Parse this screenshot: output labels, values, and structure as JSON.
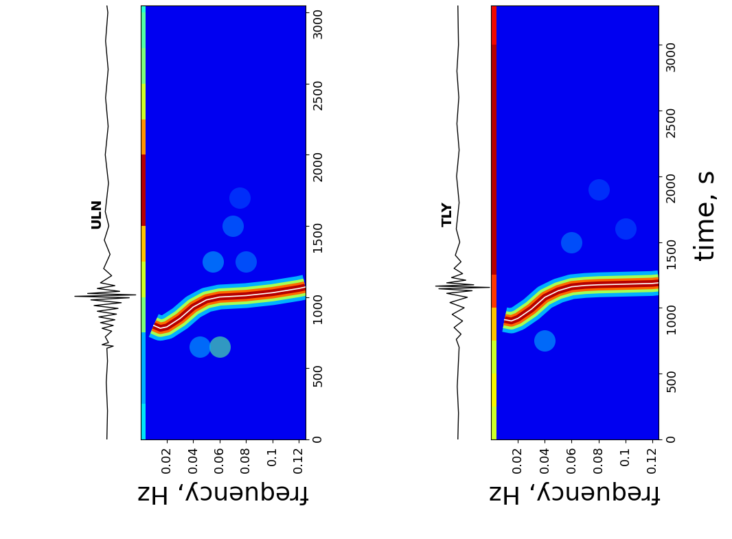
{
  "chart_data": [
    {
      "type": "spectrogram",
      "title": "ULN",
      "x_label": "frequency, Hz",
      "xlim": [
        0,
        0.125
      ],
      "xticks": [
        0.02,
        0.04,
        0.06,
        0.08,
        0.1,
        0.12
      ],
      "ylim": [
        0,
        3050
      ],
      "yticks": [
        0,
        500,
        1000,
        1500,
        2000,
        2500,
        3000
      ],
      "ridge": {
        "frequency": [
          0.01,
          0.015,
          0.02,
          0.03,
          0.04,
          0.05,
          0.06,
          0.07,
          0.08,
          0.09,
          0.1,
          0.11,
          0.12,
          0.125
        ],
        "time": [
          800,
          780,
          790,
          850,
          930,
          980,
          1000,
          1005,
          1010,
          1020,
          1030,
          1045,
          1060,
          1070
        ]
      },
      "low_band": {
        "time_edges": [
          0,
          250,
          500,
          750,
          1000,
          1250,
          1500,
          1750,
          2000,
          2250,
          2500,
          2750,
          3000,
          3050
        ],
        "intensity": [
          0.35,
          0.3,
          0.3,
          0.5,
          0.6,
          0.7,
          0.95,
          0.95,
          0.75,
          0.6,
          0.5,
          0.45,
          0.4
        ]
      },
      "blobs": [
        [
          0.06,
          650,
          0.45
        ],
        [
          0.045,
          650,
          0.3
        ],
        [
          0.055,
          1250,
          0.3
        ],
        [
          0.07,
          1500,
          0.25
        ],
        [
          0.08,
          1250,
          0.25
        ],
        [
          0.075,
          1700,
          0.2
        ]
      ],
      "waveform": {
        "time": [
          0,
          200,
          400,
          550,
          640,
          655,
          665,
          680,
          720,
          760,
          780,
          800,
          820,
          840,
          860,
          880,
          900,
          920,
          940,
          960,
          980,
          995,
          1005,
          1015,
          1025,
          1040,
          1060,
          1080,
          1100,
          1150,
          1200,
          1300,
          1400,
          1500,
          1600,
          1800,
          2000,
          2200,
          2400,
          2600,
          2800,
          3000,
          3050
        ],
        "amplitude": [
          0,
          0.02,
          -0.02,
          0.02,
          0,
          0.2,
          -0.15,
          0.05,
          -0.05,
          0.15,
          -0.15,
          0.2,
          -0.2,
          0.25,
          -0.25,
          0.3,
          -0.3,
          0.35,
          -0.4,
          0.45,
          -0.5,
          0.7,
          -1.0,
          0.9,
          -0.6,
          0.4,
          -0.3,
          0.25,
          -0.2,
          0.15,
          -0.1,
          0.1,
          -0.08,
          0.06,
          -0.05,
          0.05,
          -0.05,
          0.04,
          -0.04,
          0.04,
          -0.04,
          0.03,
          0
        ]
      }
    },
    {
      "type": "spectrogram",
      "title": "TLY",
      "x_label": "frequency, Hz",
      "y_label": "time, s",
      "xlim": [
        0,
        0.125
      ],
      "xticks": [
        0.02,
        0.04,
        0.06,
        0.08,
        0.1,
        0.12
      ],
      "ylim": [
        0,
        3300
      ],
      "yticks": [
        0,
        500,
        1000,
        1500,
        2000,
        2500,
        3000
      ],
      "ridge": {
        "frequency": [
          0.01,
          0.015,
          0.02,
          0.03,
          0.04,
          0.05,
          0.06,
          0.07,
          0.08,
          0.1,
          0.12,
          0.125
        ],
        "time": [
          910,
          900,
          920,
          990,
          1080,
          1130,
          1160,
          1170,
          1175,
          1180,
          1185,
          1190
        ]
      },
      "low_band": {
        "time_edges": [
          0,
          250,
          500,
          750,
          1000,
          1250,
          1500,
          1750,
          2000,
          2250,
          2500,
          2750,
          3000,
          3300
        ],
        "intensity": [
          0.6,
          0.65,
          0.6,
          0.7,
          0.85,
          0.95,
          0.95,
          0.95,
          0.95,
          0.95,
          0.95,
          0.95,
          0.9
        ]
      },
      "blobs": [
        [
          0.04,
          750,
          0.3
        ],
        [
          0.06,
          1500,
          0.25
        ],
        [
          0.08,
          1900,
          0.2
        ],
        [
          0.1,
          1600,
          0.2
        ]
      ],
      "waveform": {
        "time": [
          0,
          200,
          400,
          600,
          700,
          760,
          800,
          850,
          900,
          950,
          1000,
          1040,
          1080,
          1110,
          1130,
          1145,
          1155,
          1165,
          1175,
          1190,
          1210,
          1230,
          1260,
          1300,
          1350,
          1400,
          1500,
          1600,
          1800,
          2000,
          2200,
          2400,
          2600,
          2800,
          3000,
          3300
        ],
        "amplitude": [
          0,
          0.02,
          -0.02,
          0.02,
          0.04,
          -0.05,
          0.1,
          -0.12,
          0.15,
          -0.18,
          0.2,
          -0.25,
          0.3,
          -0.35,
          0.45,
          -0.6,
          1.0,
          -0.7,
          0.5,
          -0.35,
          0.25,
          -0.2,
          0.15,
          -0.12,
          0.1,
          -0.08,
          0.06,
          -0.05,
          0.04,
          -0.04,
          0.04,
          -0.03,
          0.03,
          -0.03,
          0.02,
          0
        ]
      }
    }
  ]
}
